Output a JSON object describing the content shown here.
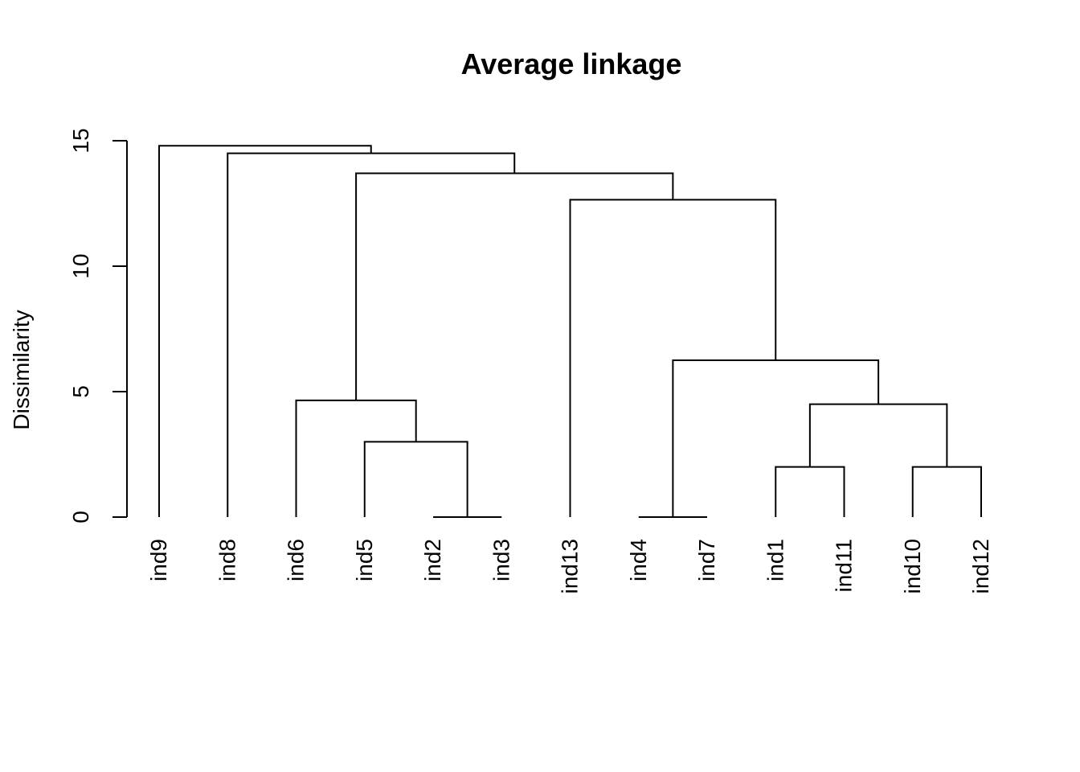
{
  "chart_data": {
    "type": "dendrogram",
    "title": "Average linkage",
    "ylabel": "Dissimilarity",
    "xlabel": "",
    "ylim": [
      0,
      15
    ],
    "yticks": [
      0,
      5,
      10,
      15
    ],
    "ytick_labels": [
      "0",
      "5",
      "10",
      "15"
    ],
    "leaves": [
      "ind9",
      "ind8",
      "ind6",
      "ind5",
      "ind2",
      "ind3",
      "ind13",
      "ind4",
      "ind7",
      "ind1",
      "ind11",
      "ind10",
      "ind12"
    ],
    "merges": [
      {
        "left": "ind2",
        "right": "ind3",
        "height": 0.0
      },
      {
        "left": "ind4",
        "right": "ind7",
        "height": 0.0
      },
      {
        "left": "ind1",
        "right": "ind11",
        "height": 2.0
      },
      {
        "left": "ind10",
        "right": "ind12",
        "height": 2.0
      },
      {
        "left": "ind5",
        "right": "M0",
        "height": 3.0
      },
      {
        "left": "M2",
        "right": "M3",
        "height": 4.5
      },
      {
        "left": "ind6",
        "right": "M4",
        "height": 4.65
      },
      {
        "left": "M1",
        "right": "M5",
        "height": 6.25
      },
      {
        "left": "ind13",
        "right": "M7",
        "height": 12.65
      },
      {
        "left": "M6",
        "right": "M8",
        "height": 13.7
      },
      {
        "left": "ind8",
        "right": "M9",
        "height": 14.5
      },
      {
        "left": "ind9",
        "right": "M10",
        "height": 14.8
      }
    ]
  }
}
